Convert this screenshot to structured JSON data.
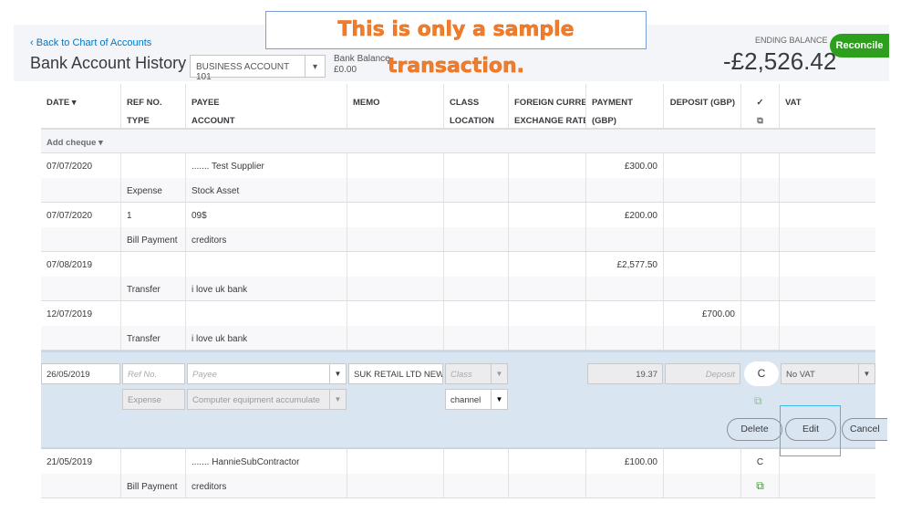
{
  "notice": "This is only a sample transaction.",
  "header": {
    "back_link": "Back to Chart of Accounts",
    "title": "Bank Account History",
    "account": "BUSINESS ACCOUNT 101",
    "bank_balance_label": "Bank Balance",
    "bank_balance": "£0.00",
    "ending_balance_label": "ENDING BALANCE",
    "ending_balance": "-£2,526.42",
    "reconcile": "Reconcile"
  },
  "columns": {
    "date": "DATE",
    "ref": "REF NO.",
    "type": "TYPE",
    "payee": "PAYEE",
    "account": "ACCOUNT",
    "memo": "MEMO",
    "class": "CLASS",
    "location": "LOCATION",
    "fx": "FOREIGN CURRENC",
    "rate": "EXCHANGE RATE",
    "payment": "PAYMENT (GBP)",
    "deposit": "DEPOSIT (GBP)",
    "check": "✓",
    "vat": "VAT"
  },
  "add_cheque": "Add cheque",
  "rows": [
    {
      "date": "07/07/2020",
      "ref": "",
      "payee": "....... Test Supplier",
      "type": "Expense",
      "account": "Stock Asset",
      "payment": "£300.00",
      "deposit": "",
      "status": ""
    },
    {
      "date": "07/07/2020",
      "ref": "1",
      "payee": "09$",
      "type": "Bill Payment",
      "account": "creditors",
      "payment": "£200.00",
      "deposit": "",
      "status": ""
    },
    {
      "date": "07/08/2019",
      "ref": "",
      "payee": "",
      "type": "Transfer",
      "account": "i love uk bank",
      "payment": "£2,577.50",
      "deposit": "",
      "status": ""
    },
    {
      "date": "12/07/2019",
      "ref": "",
      "payee": "",
      "type": "Transfer",
      "account": "i love uk bank",
      "payment": "",
      "deposit": "£700.00",
      "status": ""
    }
  ],
  "editing": {
    "date": "26/05/2019",
    "ref_placeholder": "Ref No.",
    "payee_placeholder": "Payee",
    "memo": "SUK RETAIL LTD NEWI",
    "class_placeholder": "Class",
    "type": "Expense",
    "account": "Computer equipment accumulate",
    "location": "channel",
    "payment": "19.37",
    "deposit_placeholder": "Deposit",
    "status": "C",
    "vat": "No VAT",
    "delete": "Delete",
    "edit": "Edit",
    "cancel": "Cancel"
  },
  "last_row": {
    "date": "21/05/2019",
    "payee": "....... HannieSubContractor",
    "type": "Bill Payment",
    "account": "creditors",
    "payment": "£100.00",
    "status": "C"
  },
  "colors": {
    "accent": "#0077c5",
    "reconcile": "#2ca01c",
    "notice": "#f07d2d"
  }
}
